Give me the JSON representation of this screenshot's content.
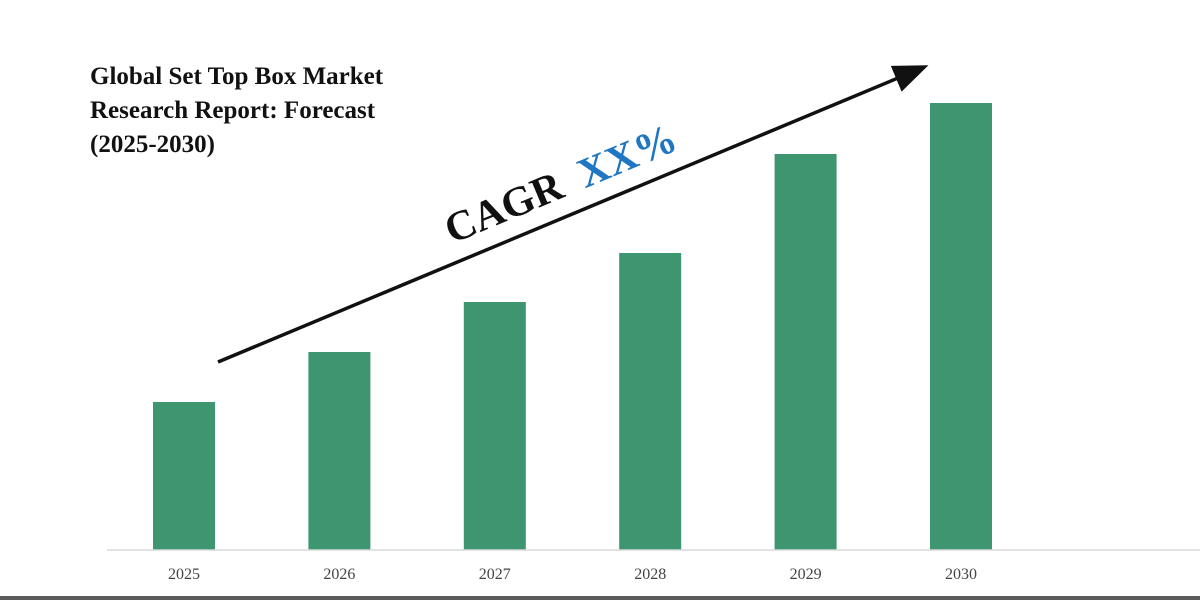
{
  "chart_data": {
    "type": "bar",
    "title_lines": [
      "Global Set Top Box Market",
      "Research Report: Forecast",
      "(2025-2030)"
    ],
    "categories": [
      "2025",
      "2026",
      "2027",
      "2028",
      "2029",
      "2030"
    ],
    "values": [
      148,
      198,
      248,
      297,
      396,
      447
    ],
    "ylim": [
      0,
      460
    ],
    "grid": false,
    "legend": "none",
    "annotation": {
      "prefix": "CAGR",
      "value": "XX%",
      "prefix_color": "#111111",
      "value_color": "#1f77c4"
    },
    "colors": {
      "bar": "#3d9670",
      "axis": "#d8d8d8",
      "tick_label": "#444444",
      "arrow": "#111111"
    }
  }
}
